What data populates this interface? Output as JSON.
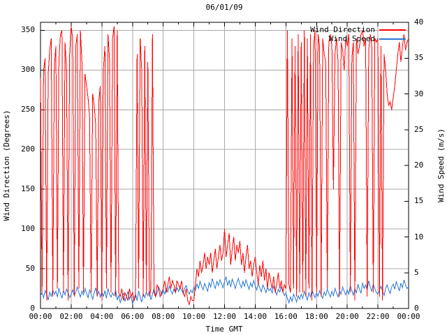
{
  "title": "06/01/09",
  "colors": {
    "direction": "#ff0000",
    "speed": "#2878d7",
    "grid": "#a8a8a8",
    "border": "#000000",
    "background": "#ffffff",
    "text": "#000000"
  },
  "chart_data": {
    "type": "line",
    "title": "06/01/09",
    "xlabel": "Time GMT",
    "grid": true,
    "x_range_minutes": [
      0,
      1440
    ],
    "x_tick_interval_minutes": 120,
    "x_minor_tick_interval_minutes": 60,
    "x_ticks_labels": [
      "00:00",
      "02:00",
      "04:00",
      "06:00",
      "08:00",
      "10:00",
      "12:00",
      "14:00",
      "16:00",
      "18:00",
      "20:00",
      "22:00",
      "00:00"
    ],
    "y_left": {
      "label": "Wind Direction (Degrees)",
      "range": [
        0,
        360
      ],
      "ticks": [
        0,
        50,
        100,
        150,
        200,
        250,
        300,
        350
      ]
    },
    "y_right": {
      "label": "Wind Speed (m/s)",
      "range": [
        0,
        40
      ],
      "ticks": [
        0,
        5,
        10,
        15,
        20,
        25,
        30,
        35,
        40
      ]
    },
    "legend": {
      "position": "top-right",
      "entries": [
        {
          "label": "Wind Direction",
          "color": "#ff0000"
        },
        {
          "label": "Wind Speed",
          "color": "#2878d7"
        }
      ]
    },
    "sample_interval_minutes": 6,
    "series": [
      {
        "name": "Wind Direction",
        "axis": "left",
        "color": "#ff0000",
        "values": [
          290,
          20,
          300,
          315,
          10,
          295,
          325,
          340,
          15,
          305,
          330,
          25,
          310,
          345,
          350,
          20,
          335,
          300,
          10,
          320,
          355,
          340,
          15,
          330,
          345,
          25,
          350,
          310,
          20,
          295,
          280,
          265,
          240,
          20,
          270,
          255,
          230,
          15,
          260,
          280,
          10,
          300,
          330,
          25,
          345,
          315,
          20,
          340,
          355,
          15,
          350,
          20,
          15,
          25,
          10,
          20,
          15,
          10,
          25,
          15,
          20,
          10,
          15,
          320,
          25,
          340,
          300,
          15,
          330,
          20,
          310,
          15,
          25,
          345,
          20,
          15,
          30,
          25,
          15,
          20,
          25,
          35,
          20,
          30,
          40,
          25,
          35,
          30,
          20,
          35,
          30,
          25,
          35,
          20,
          15,
          25,
          10,
          5,
          15,
          10,
          10,
          30,
          50,
          40,
          60,
          45,
          55,
          70,
          50,
          65,
          55,
          70,
          45,
          60,
          75,
          50,
          65,
          80,
          60,
          70,
          100,
          65,
          80,
          95,
          55,
          75,
          90,
          60,
          80,
          70,
          85,
          55,
          70,
          45,
          65,
          80,
          50,
          60,
          40,
          55,
          65,
          45,
          30,
          55,
          40,
          60,
          35,
          50,
          25,
          45,
          35,
          25,
          40,
          20,
          30,
          45,
          25,
          35,
          20,
          30,
          25,
          350,
          30,
          20,
          340,
          25,
          330,
          15,
          345,
          20,
          335,
          20,
          350,
          15,
          340,
          25,
          345,
          10,
          330,
          350,
          20,
          345,
          330,
          15,
          340,
          320,
          310,
          25,
          335,
          345,
          330,
          150,
          320,
          340,
          310,
          15,
          335,
          325,
          300,
          340,
          330,
          345,
          20,
          315,
          335,
          10,
          340,
          320,
          330,
          345,
          350,
          330,
          340,
          15,
          325,
          345,
          330,
          20,
          340,
          335,
          340,
          15,
          330,
          10,
          320,
          300,
          270,
          255,
          260,
          250,
          265,
          280,
          300,
          320,
          335,
          310,
          330,
          345,
          325,
          335,
          340
        ]
      },
      {
        "name": "Wind Speed",
        "axis": "right",
        "color": "#2878d7",
        "values": [
          1.8,
          2.2,
          1.5,
          2.5,
          2.0,
          1.2,
          2.3,
          1.7,
          2.6,
          2.0,
          2.4,
          1.6,
          2.8,
          2.1,
          1.4,
          2.5,
          1.9,
          2.7,
          2.2,
          1.5,
          2.0,
          2.6,
          1.8,
          2.3,
          3.0,
          2.2,
          1.6,
          2.4,
          1.9,
          2.8,
          2.1,
          1.5,
          2.6,
          2.0,
          1.3,
          2.2,
          2.9,
          1.8,
          2.4,
          1.6,
          2.3,
          1.7,
          2.5,
          1.4,
          2.8,
          2.0,
          1.6,
          2.2,
          1.8,
          2.6,
          1.2,
          1.8,
          0.8,
          1.5,
          2.2,
          1.0,
          1.7,
          2.4,
          1.3,
          1.9,
          0.6,
          1.4,
          2.0,
          1.1,
          2.5,
          1.6,
          0.9,
          2.1,
          1.5,
          2.3,
          1.8,
          2.4,
          1.2,
          2.0,
          2.8,
          1.6,
          2.2,
          3.0,
          2.5,
          1.9,
          2.6,
          2.0,
          2.8,
          2.3,
          3.1,
          2.5,
          2.0,
          2.7,
          2.2,
          2.9,
          2.4,
          3.0,
          2.6,
          2.1,
          2.8,
          3.2,
          2.5,
          2.0,
          2.6,
          2.2,
          3.0,
          2.5,
          3.4,
          2.8,
          3.8,
          3.1,
          2.6,
          3.5,
          3.0,
          2.4,
          3.6,
          3.0,
          4.2,
          3.4,
          2.8,
          3.8,
          3.2,
          4.0,
          3.5,
          2.9,
          3.8,
          4.4,
          3.2,
          3.9,
          3.0,
          4.1,
          3.5,
          2.8,
          3.6,
          4.2,
          3.4,
          2.9,
          3.8,
          3.1,
          4.0,
          3.3,
          2.7,
          3.6,
          3.0,
          3.9,
          3.2,
          2.6,
          3.5,
          2.9,
          2.3,
          3.3,
          2.8,
          2.2,
          3.0,
          2.5,
          2.8,
          2.2,
          3.1,
          2.5,
          1.9,
          2.7,
          2.3,
          3.0,
          2.4,
          1.8,
          2.2,
          1.4,
          0.8,
          1.6,
          1.0,
          2.0,
          1.5,
          0.9,
          1.8,
          1.3,
          2.0,
          1.4,
          2.4,
          1.8,
          1.2,
          2.2,
          1.6,
          2.6,
          2.0,
          1.5,
          2.2,
          1.7,
          2.5,
          1.9,
          1.4,
          2.3,
          1.8,
          2.7,
          2.1,
          1.6,
          2.4,
          1.8,
          2.8,
          2.2,
          1.6,
          2.5,
          2.0,
          3.0,
          2.4,
          1.9,
          2.6,
          2.0,
          3.2,
          2.5,
          1.8,
          2.8,
          2.2,
          3.4,
          2.7,
          2.1,
          3.6,
          2.8,
          3.3,
          2.6,
          3.9,
          3.0,
          2.4,
          3.4,
          2.8,
          2.2,
          2.0,
          2.6,
          3.1,
          2.4,
          1.8,
          2.8,
          3.3,
          2.6,
          2.1,
          3.0,
          3.4,
          2.7,
          3.8,
          3.1,
          2.5,
          3.5,
          2.9,
          4.0,
          3.3,
          2.8,
          3.0
        ]
      }
    ]
  }
}
